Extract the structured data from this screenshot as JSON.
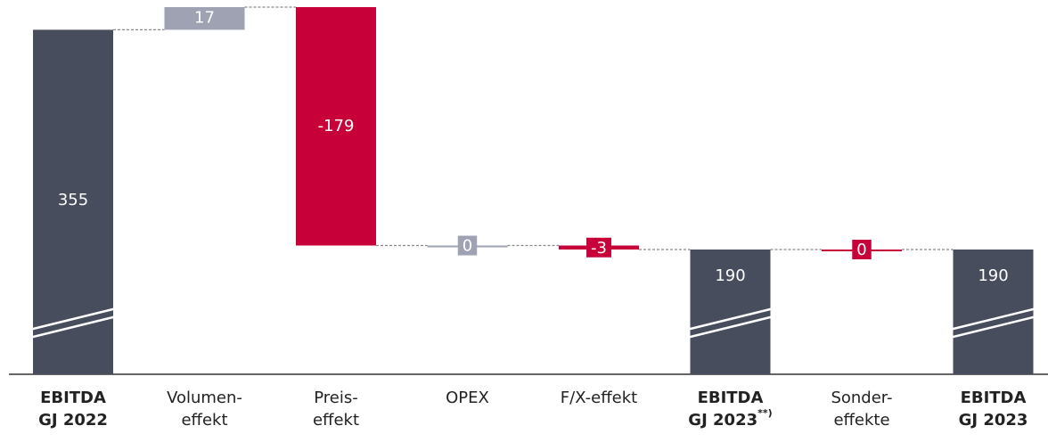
{
  "chart_data": {
    "type": "waterfall",
    "categories": [
      [
        "EBITDA",
        "GJ 2022"
      ],
      [
        "Volumen-",
        "effekt"
      ],
      [
        "Preis-",
        "effekt"
      ],
      [
        "OPEX"
      ],
      [
        "F/X-effekt"
      ],
      [
        "EBITDA",
        "GJ 2023"
      ],
      [
        "Sonder-",
        "effekte"
      ],
      [
        "EBITDA",
        "GJ 2023"
      ]
    ],
    "category_notes": [
      null,
      null,
      null,
      null,
      null,
      "**)",
      null,
      null
    ],
    "values": [
      355,
      17,
      -179,
      0,
      -3,
      190,
      0,
      190
    ],
    "is_total": [
      true,
      false,
      false,
      false,
      false,
      true,
      false,
      true
    ],
    "colors": [
      "#474d5c",
      "#9ea2b2",
      "#c8003a",
      "#9ea2b2",
      "#c8003a",
      "#474d5c",
      "#c8003a",
      "#474d5c"
    ],
    "axis_break": true
  }
}
